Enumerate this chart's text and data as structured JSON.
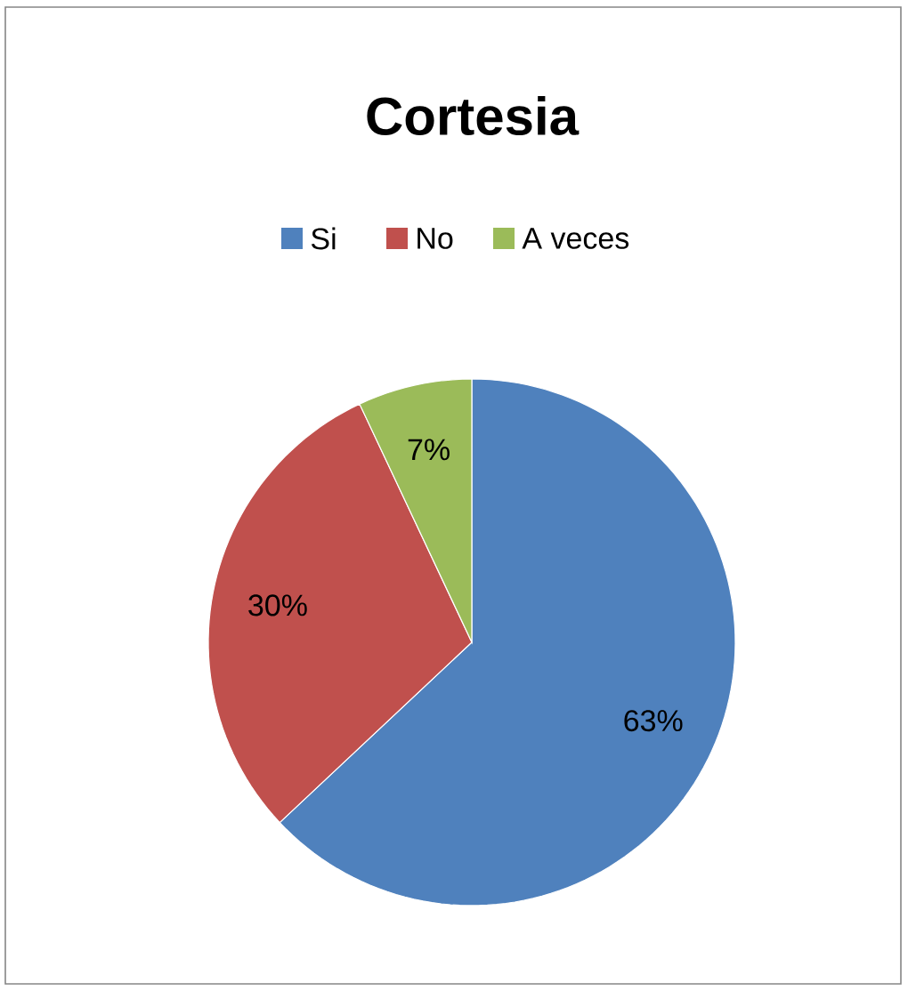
{
  "chart_data": {
    "type": "pie",
    "title": "Cortesia",
    "categories": [
      "Si",
      "No",
      "A veces"
    ],
    "values": [
      63,
      30,
      7
    ],
    "colors": [
      "#4f81bd",
      "#c0504d",
      "#9bbb59"
    ],
    "value_labels": [
      "63%",
      "30%",
      "7%"
    ],
    "legend": "top"
  }
}
